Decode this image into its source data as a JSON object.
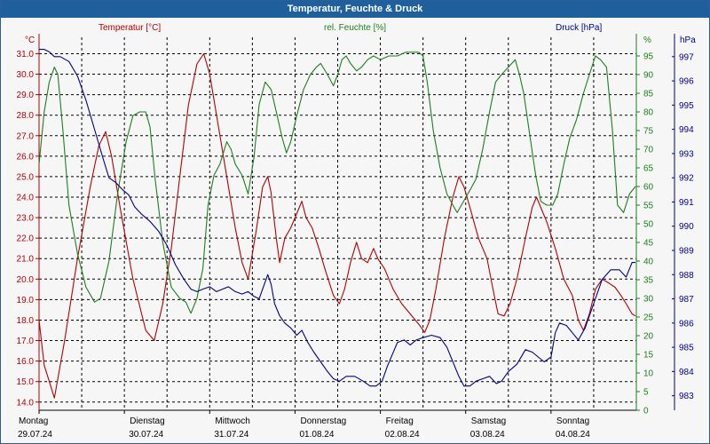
{
  "window": {
    "title": "Temperatur, Feuchte & Druck"
  },
  "colors": {
    "temperature": "#b20000",
    "humidity": "#1c7f1c",
    "pressure": "#00008b",
    "title_bar": "#1f5f9c"
  },
  "chart_data": {
    "type": "line",
    "title": "Temperatur, Feuchte & Druck",
    "grid": true,
    "x_ticks": [
      {
        "day": "Montag",
        "date": "29.07.24"
      },
      {
        "day": "Dienstag",
        "date": "30.07.24"
      },
      {
        "day": "Mittwoch",
        "date": "31.07.24"
      },
      {
        "day": "Donnerstag",
        "date": "01.08.24"
      },
      {
        "day": "Freitag",
        "date": "02.08.24"
      },
      {
        "day": "Samstag",
        "date": "03.08.24"
      },
      {
        "day": "Sonntag",
        "date": "04.08.24"
      }
    ],
    "axes": {
      "temperature": {
        "label": "Temperatur [°C]",
        "unit": "°C",
        "min": 13.6,
        "max": 31.8,
        "ticks": [
          "31.0",
          "30.0",
          "29.0",
          "28.0",
          "27.0",
          "26.0",
          "25.0",
          "24.0",
          "23.0",
          "22.0",
          "21.0",
          "20.0",
          "19.0",
          "18.0",
          "17.0",
          "16.0",
          "15.0",
          "14.0"
        ]
      },
      "humidity": {
        "label": "rel. Feuchte [%]",
        "unit": "%",
        "min": 0,
        "max": 100,
        "ticks": [
          "95",
          "90",
          "85",
          "80",
          "75",
          "70",
          "65",
          "60",
          "55",
          "50",
          "45",
          "40",
          "35",
          "30",
          "25",
          "20",
          "15",
          "10",
          "5",
          "0"
        ]
      },
      "pressure": {
        "label": "Druck [hPa]",
        "unit": "hPa",
        "min": 982.4,
        "max": 997.8,
        "ticks": [
          "997",
          "996",
          "995",
          "994",
          "993",
          "992",
          "991",
          "990",
          "989",
          "988",
          "987",
          "986",
          "985",
          "984",
          "983"
        ]
      }
    },
    "series": [
      {
        "name": "Temperatur [°C]",
        "axis": "temperature",
        "points": [
          [
            0,
            18.0
          ],
          [
            0.06,
            15.8
          ],
          [
            0.18,
            14.2
          ],
          [
            0.3,
            17.0
          ],
          [
            0.45,
            21.0
          ],
          [
            0.6,
            24.5
          ],
          [
            0.7,
            26.5
          ],
          [
            0.78,
            27.2
          ],
          [
            0.85,
            26.0
          ],
          [
            0.95,
            23.5
          ],
          [
            1.1,
            20.0
          ],
          [
            1.25,
            17.5
          ],
          [
            1.35,
            17.0
          ],
          [
            1.45,
            18.8
          ],
          [
            1.55,
            21.5
          ],
          [
            1.65,
            25.0
          ],
          [
            1.75,
            28.5
          ],
          [
            1.85,
            30.5
          ],
          [
            1.93,
            31.0
          ],
          [
            2.0,
            30.0
          ],
          [
            2.1,
            27.5
          ],
          [
            2.2,
            25.0
          ],
          [
            2.3,
            22.5
          ],
          [
            2.38,
            20.8
          ],
          [
            2.45,
            20.0
          ],
          [
            2.55,
            22.5
          ],
          [
            2.62,
            24.5
          ],
          [
            2.68,
            25.0
          ],
          [
            2.72,
            24.2
          ],
          [
            2.78,
            22.0
          ],
          [
            2.82,
            20.8
          ],
          [
            2.88,
            22.0
          ],
          [
            2.95,
            22.5
          ],
          [
            3.02,
            23.2
          ],
          [
            3.08,
            23.8
          ],
          [
            3.13,
            23.0
          ],
          [
            3.2,
            22.5
          ],
          [
            3.28,
            21.5
          ],
          [
            3.35,
            20.5
          ],
          [
            3.45,
            19.2
          ],
          [
            3.52,
            18.8
          ],
          [
            3.58,
            19.5
          ],
          [
            3.65,
            20.8
          ],
          [
            3.72,
            21.8
          ],
          [
            3.78,
            21.0
          ],
          [
            3.85,
            20.8
          ],
          [
            3.92,
            21.5
          ],
          [
            3.97,
            21.0
          ],
          [
            4.05,
            20.5
          ],
          [
            4.15,
            19.5
          ],
          [
            4.25,
            18.8
          ],
          [
            4.35,
            18.3
          ],
          [
            4.45,
            17.8
          ],
          [
            4.52,
            17.4
          ],
          [
            4.58,
            18.0
          ],
          [
            4.65,
            19.5
          ],
          [
            4.75,
            22.0
          ],
          [
            4.85,
            24.0
          ],
          [
            4.92,
            25.0
          ],
          [
            4.98,
            24.5
          ],
          [
            5.05,
            23.5
          ],
          [
            5.15,
            22.0
          ],
          [
            5.25,
            21.0
          ],
          [
            5.32,
            19.5
          ],
          [
            5.38,
            18.3
          ],
          [
            5.45,
            18.2
          ],
          [
            5.52,
            18.8
          ],
          [
            5.6,
            20.0
          ],
          [
            5.7,
            22.0
          ],
          [
            5.78,
            23.5
          ],
          [
            5.83,
            24.0
          ],
          [
            5.88,
            23.5
          ],
          [
            5.95,
            22.8
          ],
          [
            6.05,
            21.5
          ],
          [
            6.15,
            20.0
          ],
          [
            6.25,
            19.2
          ],
          [
            6.32,
            18.0
          ],
          [
            6.38,
            17.5
          ],
          [
            6.45,
            18.3
          ],
          [
            6.52,
            19.5
          ],
          [
            6.6,
            20.0
          ],
          [
            6.68,
            19.8
          ],
          [
            6.75,
            19.6
          ],
          [
            6.82,
            19.2
          ],
          [
            6.88,
            18.8
          ],
          [
            6.95,
            18.3
          ],
          [
            6.99,
            18.2
          ]
        ]
      },
      {
        "name": "rel. Feuchte [%]",
        "axis": "humidity",
        "points": [
          [
            0,
            66
          ],
          [
            0.06,
            80
          ],
          [
            0.12,
            88
          ],
          [
            0.18,
            92
          ],
          [
            0.22,
            90
          ],
          [
            0.28,
            75
          ],
          [
            0.35,
            55
          ],
          [
            0.45,
            42
          ],
          [
            0.55,
            33
          ],
          [
            0.65,
            29
          ],
          [
            0.72,
            30
          ],
          [
            0.82,
            40
          ],
          [
            0.92,
            58
          ],
          [
            1.02,
            72
          ],
          [
            1.1,
            79
          ],
          [
            1.18,
            80
          ],
          [
            1.25,
            80
          ],
          [
            1.3,
            76
          ],
          [
            1.36,
            62
          ],
          [
            1.45,
            45
          ],
          [
            1.55,
            33
          ],
          [
            1.65,
            30
          ],
          [
            1.72,
            29
          ],
          [
            1.78,
            26
          ],
          [
            1.85,
            30
          ],
          [
            1.92,
            38
          ],
          [
            1.98,
            55
          ],
          [
            2.05,
            63
          ],
          [
            2.12,
            66
          ],
          [
            2.2,
            72
          ],
          [
            2.25,
            70
          ],
          [
            2.3,
            66
          ],
          [
            2.38,
            63
          ],
          [
            2.45,
            58
          ],
          [
            2.52,
            68
          ],
          [
            2.58,
            82
          ],
          [
            2.65,
            88
          ],
          [
            2.72,
            86
          ],
          [
            2.78,
            80
          ],
          [
            2.85,
            73
          ],
          [
            2.9,
            69
          ],
          [
            2.95,
            72
          ],
          [
            3.02,
            79
          ],
          [
            3.1,
            86
          ],
          [
            3.18,
            90
          ],
          [
            3.25,
            92
          ],
          [
            3.3,
            93
          ],
          [
            3.38,
            90
          ],
          [
            3.45,
            87
          ],
          [
            3.5,
            90
          ],
          [
            3.55,
            94
          ],
          [
            3.6,
            95
          ],
          [
            3.65,
            93
          ],
          [
            3.72,
            91
          ],
          [
            3.78,
            92
          ],
          [
            3.85,
            94
          ],
          [
            3.92,
            95
          ],
          [
            4.0,
            94
          ],
          [
            4.1,
            95
          ],
          [
            4.2,
            95
          ],
          [
            4.3,
            96
          ],
          [
            4.38,
            96
          ],
          [
            4.45,
            96
          ],
          [
            4.5,
            95
          ],
          [
            4.55,
            88
          ],
          [
            4.62,
            75
          ],
          [
            4.7,
            65
          ],
          [
            4.78,
            58
          ],
          [
            4.85,
            55
          ],
          [
            4.9,
            53
          ],
          [
            4.95,
            55
          ],
          [
            5.0,
            57
          ],
          [
            5.05,
            59
          ],
          [
            5.12,
            62
          ],
          [
            5.2,
            70
          ],
          [
            5.28,
            80
          ],
          [
            5.35,
            88
          ],
          [
            5.42,
            90
          ],
          [
            5.5,
            92
          ],
          [
            5.58,
            94
          ],
          [
            5.63,
            90
          ],
          [
            5.68,
            85
          ],
          [
            5.75,
            74
          ],
          [
            5.82,
            63
          ],
          [
            5.88,
            56
          ],
          [
            5.95,
            55
          ],
          [
            6.02,
            55
          ],
          [
            6.08,
            58
          ],
          [
            6.15,
            66
          ],
          [
            6.22,
            73
          ],
          [
            6.3,
            78
          ],
          [
            6.38,
            85
          ],
          [
            6.45,
            90
          ],
          [
            6.52,
            95
          ],
          [
            6.58,
            94
          ],
          [
            6.65,
            92
          ],
          [
            6.72,
            75
          ],
          [
            6.78,
            55
          ],
          [
            6.85,
            53
          ],
          [
            6.92,
            58
          ],
          [
            6.99,
            60
          ]
        ]
      },
      {
        "name": "Druck [hPa]",
        "axis": "pressure",
        "points": [
          [
            0,
            997.3
          ],
          [
            0.06,
            997.3
          ],
          [
            0.12,
            997.2
          ],
          [
            0.18,
            997.0
          ],
          [
            0.25,
            997.0
          ],
          [
            0.35,
            996.8
          ],
          [
            0.45,
            996.2
          ],
          [
            0.55,
            995.2
          ],
          [
            0.65,
            994.0
          ],
          [
            0.75,
            992.8
          ],
          [
            0.82,
            992.0
          ],
          [
            0.9,
            991.8
          ],
          [
            0.98,
            991.5
          ],
          [
            1.05,
            991.3
          ],
          [
            1.12,
            990.8
          ],
          [
            1.2,
            990.5
          ],
          [
            1.3,
            990.2
          ],
          [
            1.4,
            989.8
          ],
          [
            1.5,
            989.2
          ],
          [
            1.6,
            988.4
          ],
          [
            1.7,
            987.8
          ],
          [
            1.78,
            987.4
          ],
          [
            1.85,
            987.3
          ],
          [
            1.92,
            987.4
          ],
          [
            2.0,
            987.5
          ],
          [
            2.08,
            987.3
          ],
          [
            2.15,
            987.4
          ],
          [
            2.22,
            987.5
          ],
          [
            2.3,
            987.3
          ],
          [
            2.38,
            987.2
          ],
          [
            2.45,
            987.3
          ],
          [
            2.52,
            987.1
          ],
          [
            2.58,
            987.0
          ],
          [
            2.62,
            987.4
          ],
          [
            2.68,
            988.0
          ],
          [
            2.72,
            987.6
          ],
          [
            2.76,
            986.8
          ],
          [
            2.82,
            986.3
          ],
          [
            2.88,
            986.0
          ],
          [
            2.95,
            985.8
          ],
          [
            3.02,
            985.5
          ],
          [
            3.08,
            985.7
          ],
          [
            3.15,
            985.2
          ],
          [
            3.22,
            984.8
          ],
          [
            3.3,
            984.4
          ],
          [
            3.38,
            984.0
          ],
          [
            3.45,
            983.7
          ],
          [
            3.52,
            983.6
          ],
          [
            3.6,
            983.8
          ],
          [
            3.7,
            983.8
          ],
          [
            3.8,
            983.6
          ],
          [
            3.88,
            983.4
          ],
          [
            3.95,
            983.4
          ],
          [
            4.02,
            983.6
          ],
          [
            4.08,
            984.2
          ],
          [
            4.14,
            984.7
          ],
          [
            4.2,
            985.2
          ],
          [
            4.28,
            985.3
          ],
          [
            4.35,
            985.1
          ],
          [
            4.42,
            985.3
          ],
          [
            4.5,
            985.4
          ],
          [
            4.6,
            985.5
          ],
          [
            4.7,
            985.4
          ],
          [
            4.78,
            985.0
          ],
          [
            4.85,
            984.4
          ],
          [
            4.92,
            983.8
          ],
          [
            4.98,
            983.4
          ],
          [
            5.05,
            983.4
          ],
          [
            5.12,
            983.6
          ],
          [
            5.2,
            983.7
          ],
          [
            5.28,
            983.8
          ],
          [
            5.36,
            983.5
          ],
          [
            5.42,
            983.6
          ],
          [
            5.5,
            984.0
          ],
          [
            5.6,
            984.3
          ],
          [
            5.7,
            984.9
          ],
          [
            5.78,
            984.8
          ],
          [
            5.85,
            984.6
          ],
          [
            5.92,
            984.4
          ],
          [
            6.0,
            984.6
          ],
          [
            6.05,
            985.6
          ],
          [
            6.1,
            986.0
          ],
          [
            6.18,
            985.9
          ],
          [
            6.25,
            985.6
          ],
          [
            6.32,
            985.3
          ],
          [
            6.4,
            985.8
          ],
          [
            6.5,
            986.8
          ],
          [
            6.6,
            987.8
          ],
          [
            6.7,
            988.2
          ],
          [
            6.8,
            988.2
          ],
          [
            6.88,
            987.9
          ],
          [
            6.95,
            988.5
          ],
          [
            6.99,
            988.5
          ]
        ]
      }
    ]
  }
}
